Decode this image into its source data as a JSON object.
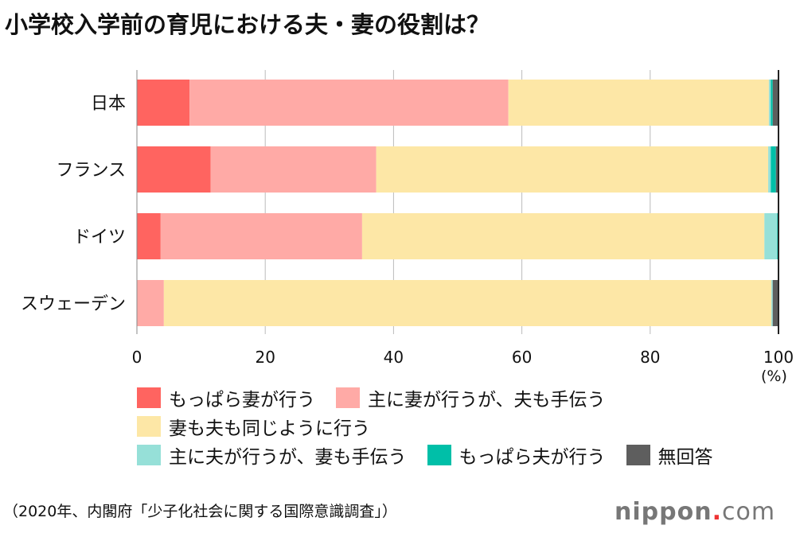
{
  "title": "小学校入学前の育児における夫・妻の役割は？",
  "source": "（2020年、内閣府「少子化社会に関する国際意識調査」）",
  "logo": {
    "text": "nippon",
    "dot": ".",
    "suffix": "com"
  },
  "chart_data": {
    "type": "bar",
    "orientation": "horizontal",
    "stacked": true,
    "categories": [
      "日本",
      "フランス",
      "ドイツ",
      "スウェーデン"
    ],
    "xlim": [
      0,
      100
    ],
    "xticks": [
      0,
      20,
      40,
      60,
      80,
      100
    ],
    "xunit": "(%)",
    "grid": true,
    "legend_position": "bottom",
    "series": [
      {
        "name": "もっぱら妻が行う",
        "color": "#ff6460",
        "values": [
          8.2,
          11.5,
          3.7,
          0
        ]
      },
      {
        "name": "主に妻が行うが、夫も手伝う",
        "color": "#ffaaa6",
        "values": [
          49.7,
          25.8,
          31.4,
          4.2
        ]
      },
      {
        "name": "妻も夫も同じように行う",
        "color": "#fde7a6",
        "values": [
          40.6,
          61.1,
          62.7,
          94.7
        ]
      },
      {
        "name": "主に夫が行うが、妻も手伝う",
        "color": "#96e0d8",
        "values": [
          0.3,
          0.4,
          2.0,
          0.2
        ]
      },
      {
        "name": "もっぱら夫が行う",
        "color": "#00bfa8",
        "values": [
          0.3,
          0.8,
          0.2,
          0
        ]
      },
      {
        "name": "無回答",
        "color": "#5e5e5e",
        "values": [
          0.9,
          0.4,
          0,
          0.9
        ]
      }
    ]
  }
}
